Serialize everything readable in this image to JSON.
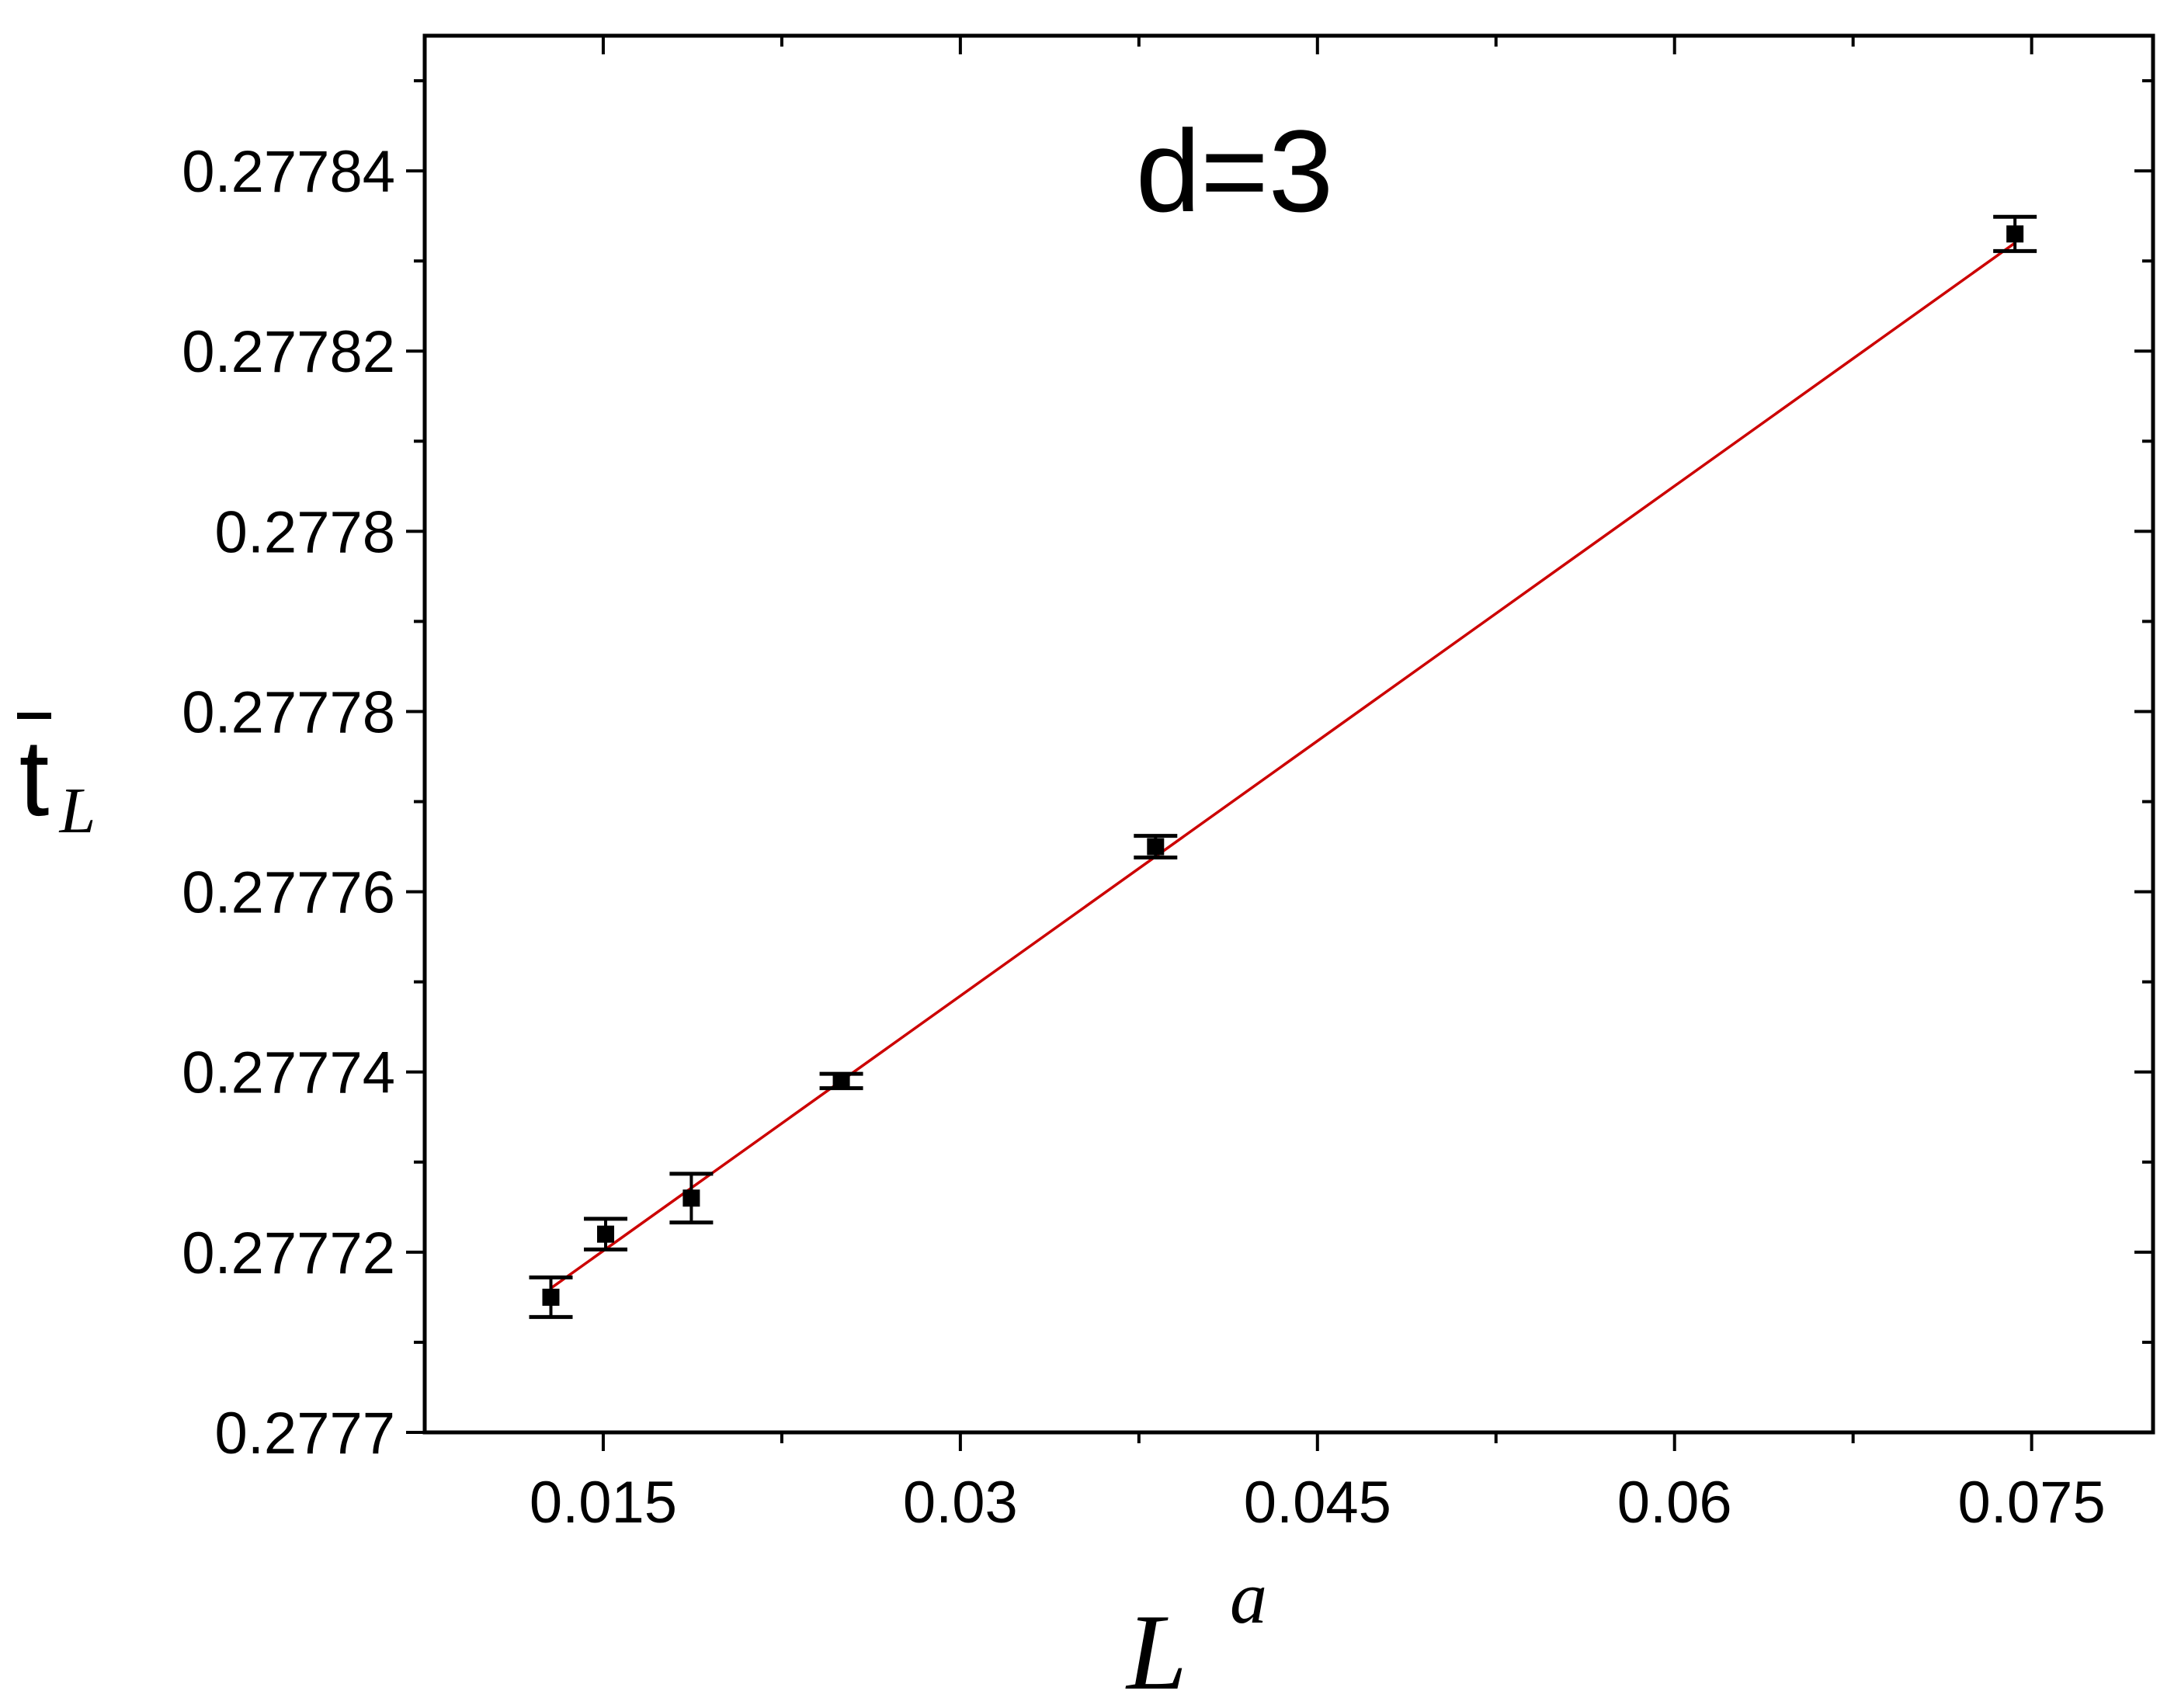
{
  "chart_data": {
    "type": "scatter",
    "annotation": "d=3",
    "xlabel": {
      "base": "L",
      "sup": "a"
    },
    "ylabel": {
      "base": "t",
      "sub": "L"
    },
    "xlim": [
      0.0075,
      0.0801
    ],
    "ylim": [
      0.2777,
      0.277855
    ],
    "x_ticks": [
      0.015,
      0.03,
      0.045,
      0.06,
      0.075
    ],
    "x_tick_labels": [
      "0.015",
      "0.03",
      "0.045",
      "0.06",
      "0.075"
    ],
    "y_ticks": [
      0.2777,
      0.27772,
      0.27774,
      0.27776,
      0.27778,
      0.2778,
      0.27782,
      0.27784
    ],
    "y_tick_labels": [
      "0.2777",
      "0.27772",
      "0.27774",
      "0.27776",
      "0.27778",
      "0.2778",
      "0.27782",
      "0.27784"
    ],
    "grid": false,
    "series": [
      {
        "marker": "square",
        "color": "#000000",
        "points": [
          {
            "x": 0.0128,
            "y": 0.277715,
            "err": 2.2e-06
          },
          {
            "x": 0.0151,
            "y": 0.277722,
            "err": 1.7e-06
          },
          {
            "x": 0.0187,
            "y": 0.277726,
            "err": 2.7e-06
          },
          {
            "x": 0.025,
            "y": 0.277739,
            "err": 8e-07
          },
          {
            "x": 0.0382,
            "y": 0.277765,
            "err": 1.2e-06
          },
          {
            "x": 0.0743,
            "y": 0.277833,
            "err": 1.9e-06
          }
        ]
      },
      {
        "type": "line",
        "color": "#cc0000",
        "x": [
          0.0128,
          0.0743
        ],
        "y": [
          0.277716,
          0.277832
        ]
      }
    ]
  }
}
